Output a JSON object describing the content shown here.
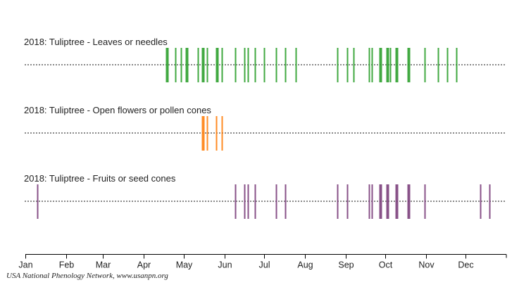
{
  "chart_data": {
    "type": "timeline",
    "x_unit": "day_of_year",
    "xlim": [
      1,
      366
    ],
    "tick_labels": [
      "Jan",
      "Feb",
      "Mar",
      "Apr",
      "May",
      "Jun",
      "Jul",
      "Aug",
      "Sep",
      "Oct",
      "Nov",
      "Dec"
    ],
    "tick_days": [
      1,
      32,
      60,
      91,
      121,
      152,
      182,
      213,
      244,
      274,
      305,
      335
    ],
    "grid": false,
    "series": [
      {
        "name": "2018: Tuliptree - Leaves or needles",
        "color": "#2ca02c",
        "days": [
          108,
          109,
          115,
          119,
          123,
          124,
          132,
          135,
          136,
          139,
          146,
          147,
          150,
          160,
          167,
          170,
          175,
          182,
          191,
          198,
          206,
          238,
          245,
          250,
          262,
          264,
          270,
          271,
          275,
          276,
          278,
          282,
          283,
          291,
          292,
          304,
          314,
          321,
          328
        ]
      },
      {
        "name": "2018: Tuliptree - Open flowers or pollen cones",
        "color": "#ff7f0e",
        "days": [
          135,
          136,
          139,
          146,
          150
        ]
      },
      {
        "name": "2018: Tuliptree - Fruits or seed cones",
        "color": "#7b3f7b",
        "days": [
          10,
          160,
          167,
          170,
          175,
          191,
          198,
          238,
          245,
          262,
          264,
          270,
          271,
          275,
          276,
          282,
          283,
          291,
          292,
          304,
          346,
          353
        ]
      }
    ]
  },
  "credit": "USA National Phenology Network, www.usanpn.org"
}
